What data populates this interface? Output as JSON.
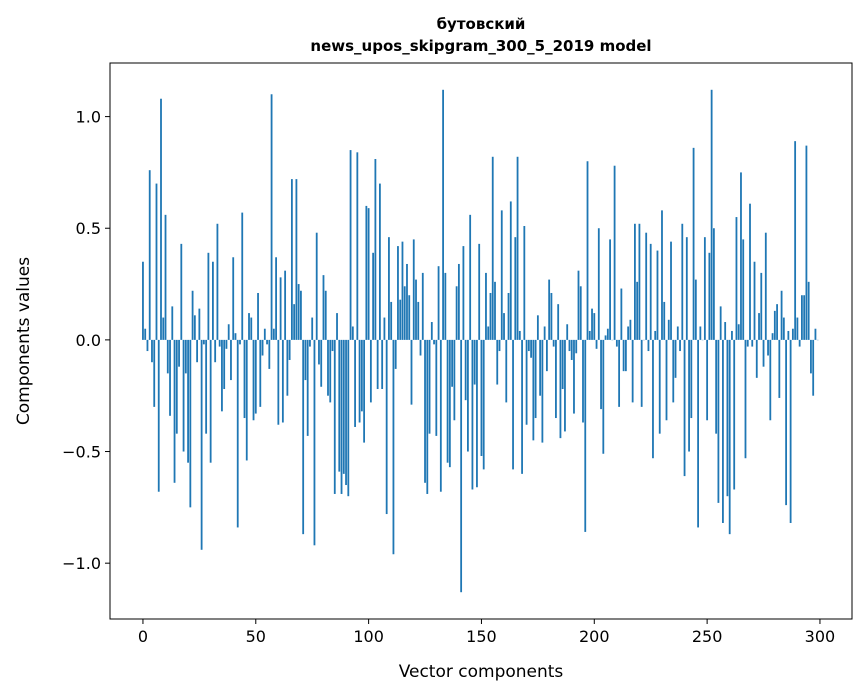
{
  "chart_data": {
    "type": "bar",
    "title_line1": "бутовский",
    "title_line2": "news_upos_skipgram_300_5_2019 model",
    "xlabel": "Vector components",
    "ylabel": "Components values",
    "xlim": [
      -14.6,
      314.2
    ],
    "ylim": [
      -1.25,
      1.24
    ],
    "xticks": [
      0,
      50,
      100,
      150,
      200,
      250,
      300
    ],
    "xtick_labels": [
      "0",
      "50",
      "100",
      "150",
      "200",
      "250",
      "300"
    ],
    "yticks": [
      1.0,
      0.5,
      0.0,
      -0.5,
      -1.0
    ],
    "ytick_labels": [
      "1.0",
      "0.5",
      "0.0",
      "−0.5",
      "−1.0"
    ],
    "bar_color": "#1f77b4",
    "values": [
      0.35,
      0.05,
      -0.05,
      0.76,
      -0.1,
      -0.3,
      0.7,
      -0.68,
      1.08,
      0.1,
      0.56,
      -0.15,
      -0.34,
      0.15,
      -0.64,
      -0.42,
      -0.12,
      0.43,
      -0.5,
      -0.15,
      -0.55,
      -0.75,
      0.22,
      0.11,
      -0.1,
      0.14,
      -0.94,
      -0.02,
      -0.42,
      0.39,
      -0.55,
      0.35,
      -0.1,
      0.52,
      -0.03,
      -0.32,
      -0.22,
      -0.04,
      0.07,
      -0.18,
      0.37,
      0.03,
      -0.84,
      -0.02,
      0.57,
      -0.35,
      -0.54,
      0.12,
      0.1,
      -0.36,
      -0.33,
      0.21,
      -0.3,
      -0.07,
      0.05,
      -0.02,
      -0.13,
      1.1,
      0.05,
      0.37,
      -0.38,
      0.28,
      -0.37,
      0.31,
      -0.25,
      -0.09,
      0.72,
      0.16,
      0.72,
      0.25,
      0.22,
      -0.87,
      -0.18,
      -0.43,
      -0.03,
      0.1,
      -0.92,
      0.48,
      -0.11,
      -0.21,
      0.29,
      0.22,
      -0.25,
      -0.28,
      -0.05,
      -0.69,
      0.12,
      -0.59,
      -0.69,
      -0.6,
      -0.65,
      -0.7,
      0.85,
      0.06,
      -0.39,
      0.84,
      -0.37,
      -0.32,
      -0.46,
      0.6,
      0.59,
      -0.28,
      0.39,
      0.81,
      -0.22,
      0.7,
      -0.22,
      0.1,
      -0.78,
      0.46,
      0.17,
      -0.96,
      -0.13,
      0.42,
      0.18,
      0.44,
      0.24,
      0.34,
      0.2,
      -0.29,
      0.45,
      0.27,
      0.17,
      -0.07,
      0.3,
      -0.64,
      -0.69,
      -0.42,
      0.08,
      -0.02,
      -0.43,
      0.33,
      -0.68,
      1.12,
      0.3,
      -0.55,
      -0.57,
      -0.21,
      -0.36,
      0.24,
      0.34,
      -1.13,
      0.42,
      -0.27,
      -0.5,
      0.56,
      -0.67,
      -0.2,
      -0.66,
      0.43,
      -0.52,
      -0.58,
      0.3,
      0.06,
      0.21,
      0.82,
      0.26,
      -0.2,
      -0.05,
      0.58,
      0.12,
      -0.28,
      0.21,
      0.62,
      -0.58,
      0.46,
      0.82,
      0.04,
      -0.6,
      0.51,
      -0.38,
      -0.05,
      -0.08,
      -0.45,
      -0.35,
      0.11,
      -0.25,
      -0.46,
      0.06,
      -0.14,
      0.27,
      0.21,
      -0.03,
      -0.35,
      0.16,
      -0.44,
      -0.22,
      -0.41,
      0.07,
      -0.05,
      -0.09,
      -0.33,
      -0.06,
      0.31,
      0.24,
      -0.37,
      -0.86,
      0.8,
      0.04,
      0.14,
      0.12,
      -0.04,
      0.5,
      -0.31,
      -0.51,
      0.02,
      0.05,
      0.45,
      0.0,
      0.78,
      -0.03,
      -0.3,
      0.23,
      -0.14,
      -0.14,
      0.06,
      0.09,
      -0.28,
      0.52,
      0.26,
      0.52,
      -0.3,
      0.0,
      0.48,
      -0.05,
      0.43,
      -0.53,
      0.04,
      0.4,
      -0.42,
      0.58,
      0.17,
      -0.36,
      0.09,
      0.44,
      -0.28,
      -0.17,
      0.06,
      -0.05,
      0.52,
      -0.61,
      0.46,
      -0.5,
      -0.35,
      0.86,
      0.27,
      -0.84,
      0.06,
      0.0,
      0.46,
      -0.36,
      0.39,
      1.12,
      0.5,
      -0.42,
      -0.73,
      0.15,
      -0.82,
      0.08,
      -0.7,
      -0.87,
      0.04,
      -0.67,
      0.55,
      0.07,
      0.75,
      0.45,
      -0.53,
      -0.03,
      0.61,
      -0.03,
      0.35,
      -0.17,
      0.12,
      0.3,
      -0.12,
      0.48,
      -0.07,
      -0.36,
      0.03,
      0.13,
      0.16,
      -0.26,
      0.22,
      0.1,
      -0.74,
      0.04,
      -0.82,
      0.05,
      0.89,
      0.1,
      -0.03,
      0.2,
      0.2,
      0.87,
      0.26,
      -0.15,
      -0.25,
      0.05,
      0.0
    ]
  }
}
